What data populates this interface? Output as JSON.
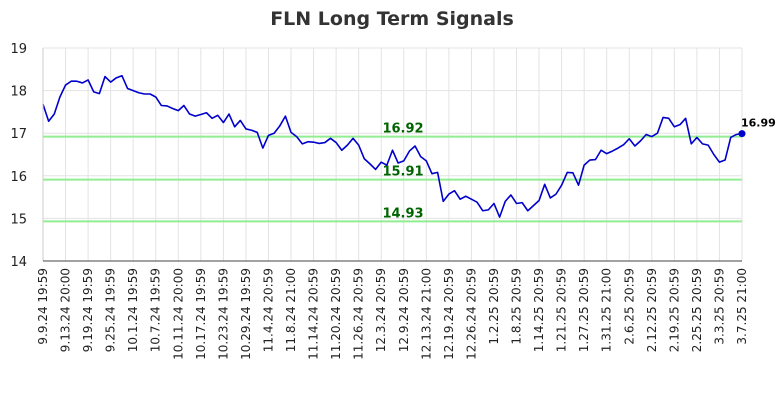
{
  "chart_data": {
    "type": "line",
    "title": "FLN Long Term Signals",
    "ylim": [
      14,
      19
    ],
    "yticks": [
      14,
      15,
      16,
      17,
      18,
      19
    ],
    "grid": true,
    "line_color": "#0000cc",
    "signal_color": "#90ee90",
    "signal_label_color": "#006400",
    "x_tick_labels": [
      "9.9.24 19:59",
      "9.13.24 20:00",
      "9.19.24 19:59",
      "9.25.24 19:59",
      "10.1.24 19:59",
      "10.7.24 19:59",
      "10.11.24 20:00",
      "10.17.24 19:59",
      "10.23.24 19:59",
      "10.29.24 19:59",
      "11.4.24 20:59",
      "11.8.24 21:00",
      "11.14.24 20:59",
      "11.20.24 20:59",
      "11.26.24 20:59",
      "12.3.24 20:59",
      "12.9.24 20:59",
      "12.13.24 21:00",
      "12.19.24 20:59",
      "12.26.24 20:59",
      "1.2.25 20:59",
      "1.8.25 20:59",
      "1.14.25 20:59",
      "1.21.25 20:59",
      "1.27.25 20:59",
      "1.31.25 21:00",
      "2.6.25 20:59",
      "2.12.25 20:59",
      "2.19.25 20:59",
      "2.25.25 20:59",
      "3.3.25 20:59",
      "3.7.25 21:00"
    ],
    "signals": [
      {
        "value": 16.92,
        "label": "16.92"
      },
      {
        "value": 15.91,
        "label": "15.91"
      },
      {
        "value": 14.93,
        "label": "14.93"
      }
    ],
    "last_value_label": "16.99",
    "values": [
      17.68,
      17.28,
      17.45,
      17.85,
      18.13,
      18.22,
      18.22,
      18.18,
      18.25,
      17.97,
      17.93,
      18.33,
      18.2,
      18.3,
      18.35,
      18.05,
      18.0,
      17.95,
      17.92,
      17.92,
      17.85,
      17.65,
      17.64,
      17.58,
      17.53,
      17.65,
      17.45,
      17.4,
      17.44,
      17.48,
      17.35,
      17.42,
      17.25,
      17.45,
      17.15,
      17.3,
      17.1,
      17.07,
      17.02,
      16.65,
      16.95,
      17.0,
      17.17,
      17.4,
      17.02,
      16.92,
      16.75,
      16.8,
      16.79,
      16.76,
      16.78,
      16.88,
      16.78,
      16.6,
      16.72,
      16.88,
      16.72,
      16.4,
      16.28,
      16.15,
      16.32,
      16.25,
      16.6,
      16.3,
      16.35,
      16.58,
      16.7,
      16.45,
      16.35,
      16.05,
      16.08,
      15.4,
      15.57,
      15.65,
      15.45,
      15.52,
      15.45,
      15.38,
      15.18,
      15.2,
      15.35,
      15.03,
      15.4,
      15.55,
      15.35,
      15.37,
      15.18,
      15.3,
      15.42,
      15.8,
      15.48,
      15.57,
      15.78,
      16.08,
      16.07,
      15.78,
      16.25,
      16.37,
      16.38,
      16.6,
      16.52,
      16.58,
      16.65,
      16.73,
      16.87,
      16.7,
      16.82,
      16.97,
      16.92,
      17.0,
      17.37,
      17.35,
      17.15,
      17.2,
      17.35,
      16.75,
      16.9,
      16.75,
      16.72,
      16.5,
      16.32,
      16.37,
      16.9,
      16.97,
      16.99
    ]
  }
}
